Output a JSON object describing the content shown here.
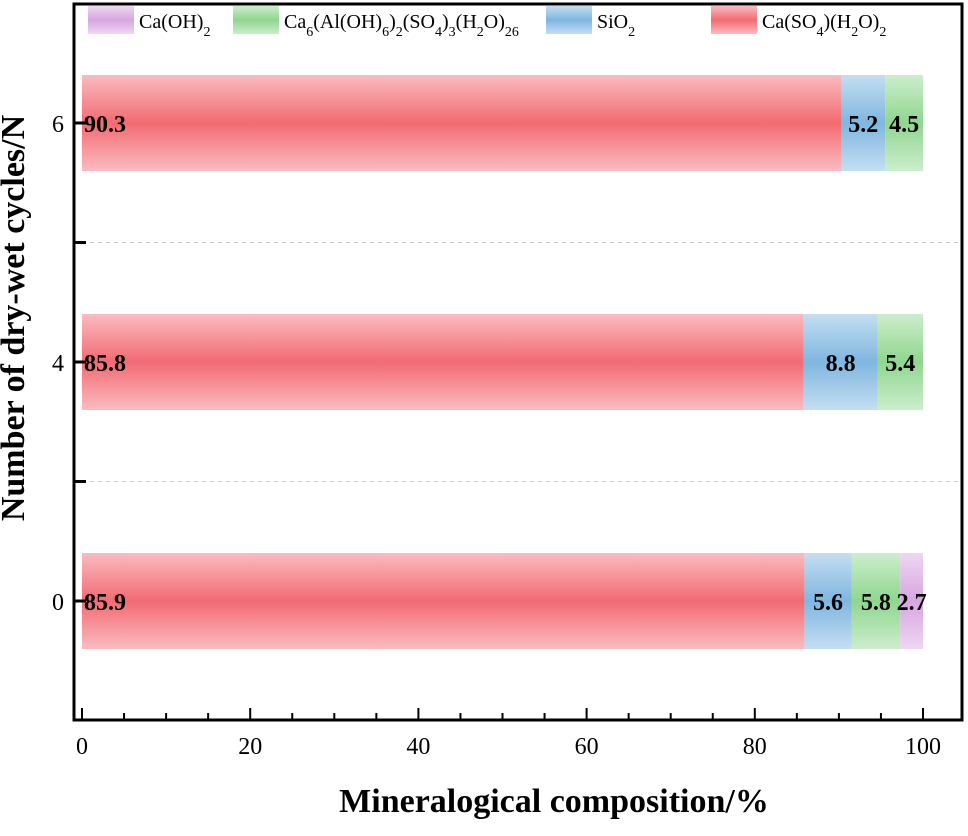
{
  "chart_data": {
    "type": "bar",
    "orientation": "horizontal",
    "stacked": true,
    "title": "",
    "xlabel": "Mineralogical composition/%",
    "ylabel": "Number of dry-wet cycles/N",
    "xlim": [
      0,
      100
    ],
    "x_ticks": [
      "0",
      "20",
      "40",
      "60",
      "80",
      "100"
    ],
    "categories": [
      "0",
      "4",
      "6"
    ],
    "series": [
      {
        "name": "Ca(SO4)(H2O)2",
        "color": "#f26b72",
        "values": [
          85.9,
          85.8,
          90.3
        ]
      },
      {
        "name": "SiO2",
        "color": "#7fb6e0",
        "values": [
          5.6,
          8.8,
          5.2
        ]
      },
      {
        "name": "Ca6(Al(OH)6)2(SO4)3(H2O)26",
        "color": "#8fd68f",
        "values": [
          5.8,
          5.4,
          4.5
        ]
      },
      {
        "name": "Ca(OH)2",
        "color": "#d7a6e0",
        "values": [
          2.7,
          0,
          0
        ]
      }
    ],
    "data_labels": [
      [
        "85.9",
        "5.6",
        "5.8",
        "2.7"
      ],
      [
        "85.8",
        "8.8",
        "5.4",
        ""
      ],
      [
        "90.3",
        "5.2",
        "4.5",
        ""
      ]
    ],
    "legend": {
      "position": "top",
      "order": [
        "Ca(OH)2",
        "Ca6(Al(OH)6)2(SO4)3(H2O)26",
        "SiO2",
        "Ca(SO4)(H2O)2"
      ],
      "entries": [
        {
          "parts": [
            [
              "Ca(OH)",
              "n"
            ],
            [
              "2",
              "sub"
            ]
          ]
        },
        {
          "parts": [
            [
              "Ca",
              "n"
            ],
            [
              "6",
              "sub"
            ],
            [
              "(Al(OH)",
              "n"
            ],
            [
              "6",
              "sub"
            ],
            [
              ")",
              "n"
            ],
            [
              "2",
              "sub"
            ],
            [
              "(SO",
              "n"
            ],
            [
              "4",
              "sub"
            ],
            [
              ")",
              "n"
            ],
            [
              "3",
              "sub"
            ],
            [
              "(H",
              "n"
            ],
            [
              "2",
              "sub"
            ],
            [
              "O)",
              "n"
            ],
            [
              "26",
              "sub"
            ]
          ]
        },
        {
          "parts": [
            [
              "SiO",
              "n"
            ],
            [
              "2",
              "sub"
            ]
          ]
        },
        {
          "parts": [
            [
              "Ca(SO",
              "n"
            ],
            [
              "4",
              "sub"
            ],
            [
              ")(H",
              "n"
            ],
            [
              "2",
              "sub"
            ],
            [
              "O)",
              "n"
            ],
            [
              "2",
              "sub"
            ]
          ]
        }
      ]
    }
  }
}
